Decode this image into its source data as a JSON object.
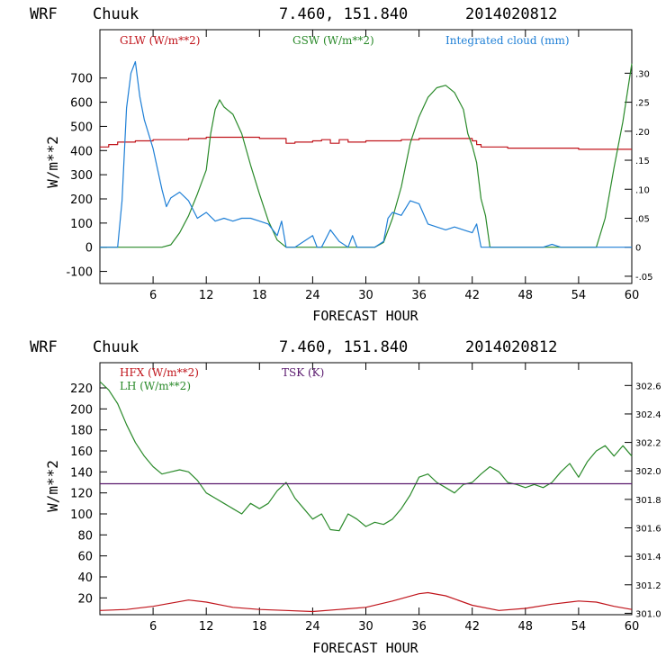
{
  "chart_data": [
    {
      "type": "line",
      "header": {
        "model": "WRF",
        "station": "Chuuk",
        "coords": "7.460, 151.840",
        "date": "2014020812"
      },
      "xlabel": "FORECAST HOUR",
      "ylabel": "W/m**2",
      "xlim": [
        0,
        60
      ],
      "ylim": [
        -150,
        900
      ],
      "y2lim": [
        -0.0625,
        0.375
      ],
      "xticks": [
        "6",
        "12",
        "18",
        "24",
        "30",
        "36",
        "42",
        "48",
        "54",
        "60"
      ],
      "xtick_values": [
        6,
        12,
        18,
        24,
        30,
        36,
        42,
        48,
        54,
        60
      ],
      "yticks": [
        "-100",
        "0",
        "100",
        "200",
        "300",
        "400",
        "500",
        "600",
        "700"
      ],
      "ytick_values": [
        -100,
        0,
        100,
        200,
        300,
        400,
        500,
        600,
        700
      ],
      "y2ticks": [
        "-.05",
        "0",
        ".05",
        ".10",
        ".15",
        ".20",
        ".25",
        ".30"
      ],
      "y2tick_values": [
        -0.05,
        0,
        0.05,
        0.1,
        0.15,
        0.2,
        0.25,
        0.3
      ],
      "colors": {
        "GLW": "#c0141b",
        "GSW": "#2a8a2a",
        "CLOUD": "#1e7fd6"
      },
      "series": [
        {
          "name": "GLW (W/m**2)",
          "color": "#c0141b",
          "axis": "left",
          "x": [
            0,
            1,
            2,
            4,
            6,
            8,
            10,
            12,
            14,
            16,
            18,
            20,
            21,
            22,
            24,
            25,
            26,
            27,
            28,
            30,
            32,
            34,
            36,
            38,
            40,
            42,
            42.5,
            43,
            46,
            50,
            54,
            58,
            60
          ],
          "y": [
            415,
            425,
            435,
            440,
            445,
            445,
            450,
            455,
            455,
            455,
            450,
            450,
            430,
            435,
            440,
            445,
            430,
            445,
            435,
            440,
            440,
            445,
            450,
            450,
            450,
            440,
            425,
            415,
            410,
            410,
            405,
            405,
            405
          ]
        },
        {
          "name": "GSW (W/m**2)",
          "color": "#2a8a2a",
          "axis": "left",
          "x": [
            0,
            6,
            7,
            8,
            9,
            10,
            11,
            12,
            12.5,
            13,
            13.5,
            14,
            15,
            16,
            17,
            18,
            19,
            20,
            21,
            22,
            30,
            31,
            32,
            33,
            34,
            35,
            36,
            37,
            38,
            39,
            40,
            41,
            41.5,
            42,
            42.5,
            43,
            43.5,
            44,
            56,
            57,
            58,
            59,
            60
          ],
          "y": [
            0,
            0,
            0,
            10,
            60,
            130,
            220,
            320,
            470,
            570,
            610,
            580,
            550,
            470,
            340,
            220,
            110,
            30,
            0,
            0,
            0,
            0,
            20,
            120,
            250,
            430,
            540,
            620,
            660,
            670,
            640,
            570,
            470,
            420,
            350,
            200,
            130,
            0,
            0,
            120,
            330,
            520,
            760
          ]
        },
        {
          "name": "Integrated cloud (mm)",
          "color": "#1e7fd6",
          "axis": "right",
          "x": [
            0,
            1,
            2,
            2.5,
            3,
            3.5,
            4,
            4.5,
            5,
            6,
            7,
            7.5,
            8,
            9,
            10,
            11,
            12,
            13,
            14,
            15,
            16,
            17,
            18,
            19,
            20,
            20.5,
            21,
            22,
            23,
            24,
            24.5,
            25,
            26,
            27,
            28,
            28.5,
            29,
            30,
            31,
            32,
            32.5,
            33,
            34,
            35,
            36,
            37,
            38,
            39,
            40,
            41,
            42,
            42.5,
            43,
            44,
            50,
            51,
            52,
            60
          ],
          "y": [
            0,
            0,
            0,
            0.08,
            0.24,
            0.3,
            0.32,
            0.26,
            0.22,
            0.17,
            0.1,
            0.07,
            0.085,
            0.095,
            0.08,
            0.05,
            0.06,
            0.045,
            0.05,
            0.045,
            0.05,
            0.05,
            0.045,
            0.04,
            0.02,
            0.045,
            0,
            0,
            0.01,
            0.02,
            0,
            0,
            0.03,
            0.01,
            0,
            0.02,
            0,
            0,
            0,
            0.01,
            0.05,
            0.06,
            0.055,
            0.08,
            0.075,
            0.04,
            0.035,
            0.03,
            0.035,
            0.03,
            0.025,
            0.04,
            0,
            0,
            0,
            0.005,
            0,
            0
          ]
        }
      ]
    },
    {
      "type": "line",
      "header": {
        "model": "WRF",
        "station": "Chuuk",
        "coords": "7.460, 151.840",
        "date": "2014020812"
      },
      "xlabel": "FORECAST HOUR",
      "ylabel": "W/m**2",
      "xlim": [
        0,
        60
      ],
      "ylim": [
        4,
        244
      ],
      "y2lim": [
        300.99,
        302.76
      ],
      "xticks": [
        "6",
        "12",
        "18",
        "24",
        "30",
        "36",
        "42",
        "48",
        "54",
        "60"
      ],
      "xtick_values": [
        6,
        12,
        18,
        24,
        30,
        36,
        42,
        48,
        54,
        60
      ],
      "yticks": [
        "20",
        "40",
        "60",
        "80",
        "100",
        "120",
        "140",
        "160",
        "180",
        "200",
        "220"
      ],
      "ytick_values": [
        20,
        40,
        60,
        80,
        100,
        120,
        140,
        160,
        180,
        200,
        220
      ],
      "y2ticks": [
        "301.0",
        "301.2",
        "301.4",
        "301.6",
        "301.8",
        "302.0",
        "302.2",
        "302.4",
        "302.6"
      ],
      "y2tick_values": [
        301.0,
        301.2,
        301.4,
        301.6,
        301.8,
        302.0,
        302.2,
        302.4,
        302.6
      ],
      "colors": {
        "HFX": "#c0141b",
        "LH": "#2a8a2a",
        "TSK": "#5a1a6e"
      },
      "series": [
        {
          "name": "HFX (W/m**2)",
          "color": "#c0141b",
          "axis": "left",
          "x": [
            0,
            3,
            6,
            8,
            10,
            12,
            15,
            18,
            21,
            24,
            27,
            30,
            33,
            36,
            37,
            39,
            42,
            45,
            48,
            51,
            54,
            56,
            58,
            60
          ],
          "y": [
            8,
            9,
            12,
            15,
            18,
            16,
            11,
            9,
            8,
            7,
            9,
            11,
            17,
            24,
            25,
            22,
            13,
            8,
            10,
            14,
            17,
            16,
            12,
            9
          ]
        },
        {
          "name": "LH (W/m**2)",
          "color": "#2a8a2a",
          "axis": "left",
          "x": [
            0,
            1,
            2,
            3,
            4,
            5,
            6,
            7,
            8,
            9,
            10,
            11,
            12,
            13,
            14,
            15,
            16,
            17,
            18,
            19,
            20,
            21,
            22,
            23,
            24,
            25,
            26,
            27,
            28,
            29,
            30,
            31,
            32,
            33,
            34,
            35,
            36,
            37,
            38,
            39,
            40,
            41,
            42,
            43,
            44,
            45,
            46,
            47,
            48,
            49,
            50,
            51,
            52,
            53,
            54,
            55,
            56,
            57,
            58,
            59,
            60
          ],
          "y": [
            226,
            218,
            205,
            185,
            168,
            155,
            145,
            138,
            140,
            142,
            140,
            132,
            120,
            115,
            110,
            105,
            100,
            110,
            105,
            110,
            122,
            130,
            115,
            105,
            95,
            100,
            85,
            84,
            100,
            95,
            88,
            92,
            90,
            95,
            105,
            118,
            135,
            138,
            130,
            125,
            120,
            128,
            130,
            138,
            145,
            140,
            130,
            128,
            125,
            128,
            125,
            130,
            140,
            148,
            135,
            150,
            160,
            165,
            155,
            165,
            155
          ]
        },
        {
          "name": "TSK (K)",
          "color": "#5a1a6e",
          "axis": "right",
          "x": [
            0,
            60
          ],
          "y": [
            301.91,
            301.91
          ]
        }
      ]
    }
  ]
}
